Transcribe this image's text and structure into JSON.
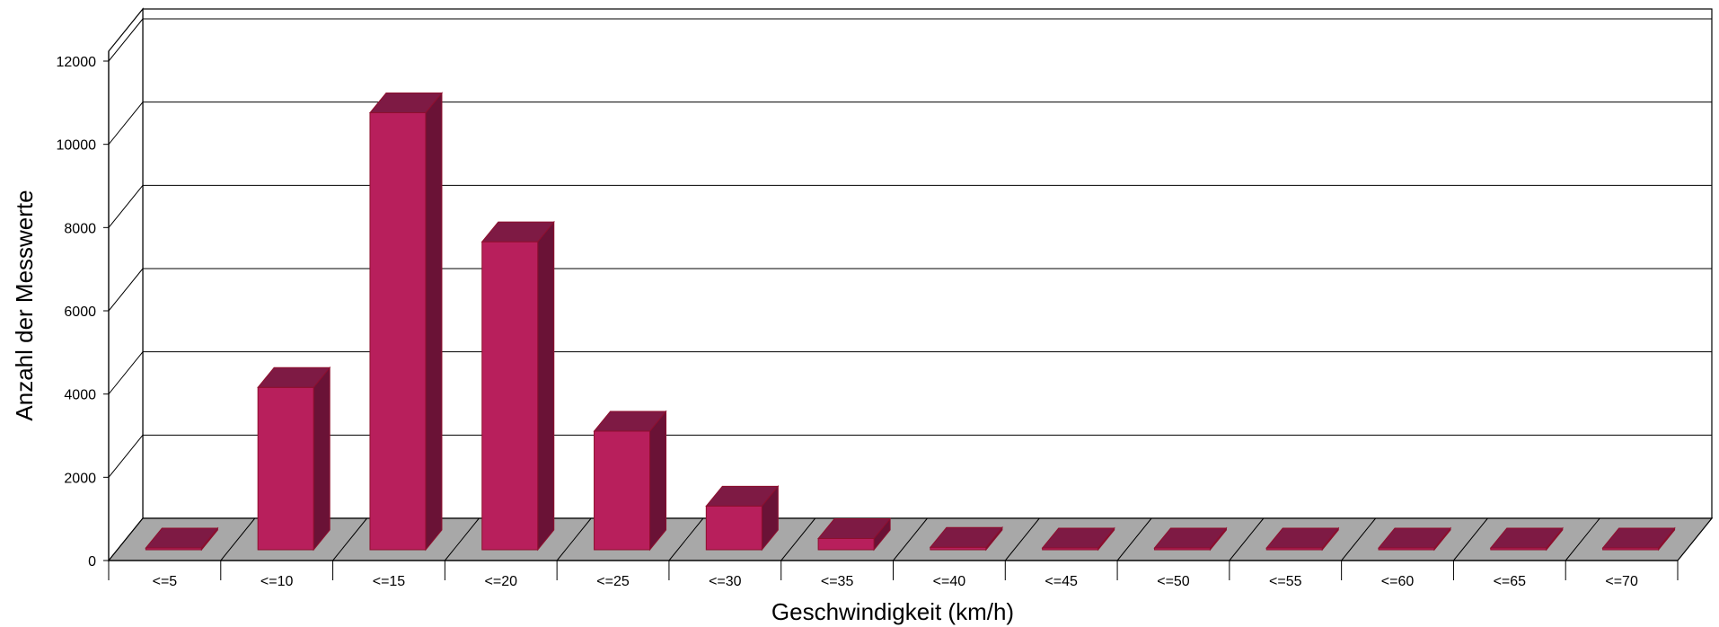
{
  "chart_data": {
    "type": "bar",
    "style": "3d-column",
    "title": "",
    "xlabel": "Geschwindigkeit (km/h)",
    "ylabel": "Anzahl der Messwerte",
    "categories": [
      "<=5",
      "<=10",
      "<=15",
      "<=20",
      "<=25",
      "<=30",
      "<=35",
      "<=40",
      "<=45",
      "<=50",
      "<=55",
      "<=60",
      "<=65",
      "<=70"
    ],
    "values": [
      30,
      3900,
      10500,
      7400,
      2850,
      1050,
      270,
      60,
      5,
      3,
      2,
      1,
      1,
      1
    ],
    "ylim": [
      0,
      12000
    ],
    "yticks": [
      "0",
      "2000",
      "4000",
      "6000",
      "8000",
      "10000",
      "12000"
    ],
    "grid": true,
    "legend": "none",
    "colors": {
      "bar_front": "#B81F5C",
      "bar_top": "#7E1A44",
      "bar_side": "#6A1236",
      "bar_edge": "#8E0F2E",
      "floor": "#A8A8A8",
      "gridline": "#000000"
    }
  }
}
